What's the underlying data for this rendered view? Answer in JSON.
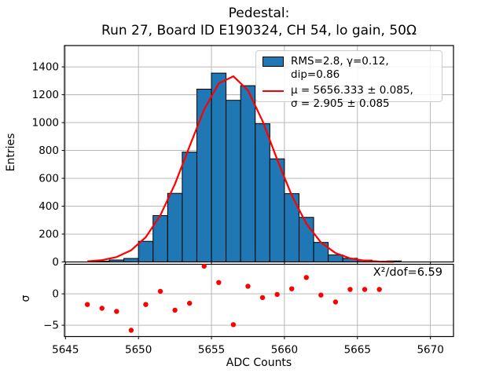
{
  "title": {
    "line1": "Pedestal:",
    "line2": "Run 27, Board ID E190324, CH 54, lo gain, 50Ω"
  },
  "legend": {
    "hist_label": "RMS=2.8, γ=0.12, dip=0.86",
    "fit_label_line1": "μ = 5656.333 ± 0.085,",
    "fit_label_line2": "σ = 2.905 ± 0.085"
  },
  "annotation": "X²/dof=6.59",
  "colors": {
    "bar_fill": "#1f77b4",
    "bar_edge": "#000000",
    "fit_line": "#ff0000",
    "residual_dot": "#ff0000",
    "grid": "#b0b0b0",
    "spine": "#000000"
  },
  "chart_data": [
    {
      "type": "bar",
      "title": "Pedestal: Run 27, Board ID E190324, CH 54, lo gain, 50Ω",
      "xlabel": "",
      "ylabel": "Entries",
      "xlim": [
        5644.93,
        5671.58
      ],
      "ylim": [
        0,
        1553
      ],
      "grid": true,
      "x_ticks": [
        5645,
        5650,
        5655,
        5660,
        5665,
        5670
      ],
      "x_tick_labels": [
        "5645",
        "5650",
        "5655",
        "5660",
        "5665",
        "5670"
      ],
      "y_ticks": [
        0,
        200,
        400,
        600,
        800,
        1000,
        1200,
        1400
      ],
      "y_tick_labels": [
        "0",
        "200",
        "400",
        "600",
        "800",
        "1000",
        "1200",
        "1400"
      ],
      "bins": {
        "bin_width": 1,
        "left_edges": [
          5647,
          5648,
          5649,
          5650,
          5651,
          5652,
          5653,
          5654,
          5655,
          5656,
          5657,
          5658,
          5659,
          5660,
          5661,
          5662,
          5663,
          5664,
          5665,
          5666,
          5667
        ],
        "counts": [
          5,
          14,
          25,
          148,
          333,
          492,
          788,
          1240,
          1355,
          1160,
          1265,
          992,
          740,
          490,
          320,
          140,
          50,
          26,
          13,
          0,
          7
        ]
      },
      "fit": {
        "shape": "gaussian",
        "mu": 5656.333,
        "mu_err": 0.085,
        "sigma": 2.905,
        "sigma_err": 0.085,
        "amplitude": 1335,
        "x_start": 5646.5,
        "x_end": 5667.5,
        "step": 1
      },
      "legend_entries": [
        "RMS=2.8, γ=0.12, dip=0.86",
        "μ = 5656.333 ± 0.085, σ = 2.905 ± 0.085"
      ],
      "legend_position": "upper right"
    },
    {
      "type": "scatter",
      "xlabel": "ADC Counts",
      "ylabel": "σ",
      "xlim": [
        5644.93,
        5671.58
      ],
      "ylim": [
        -6.8,
        4.7
      ],
      "grid": true,
      "y_ticks": [
        0,
        -5
      ],
      "y_tick_labels": [
        "0",
        "−5"
      ],
      "x": [
        5646.5,
        5647.5,
        5648.5,
        5649.5,
        5650.5,
        5651.5,
        5652.5,
        5653.5,
        5654.5,
        5655.5,
        5656.5,
        5657.5,
        5658.5,
        5659.5,
        5660.5,
        5661.5,
        5662.5,
        5663.5,
        5664.5,
        5665.5,
        5666.5
      ],
      "y": [
        -1.7,
        -2.3,
        -2.8,
        -5.8,
        -1.7,
        0.4,
        -2.6,
        -1.5,
        4.4,
        1.8,
        -4.9,
        1.2,
        -0.6,
        -0.1,
        0.8,
        2.6,
        -0.2,
        -1.3,
        0.7,
        0.7,
        0.7
      ],
      "annotation": "X²/dof=6.59"
    }
  ]
}
